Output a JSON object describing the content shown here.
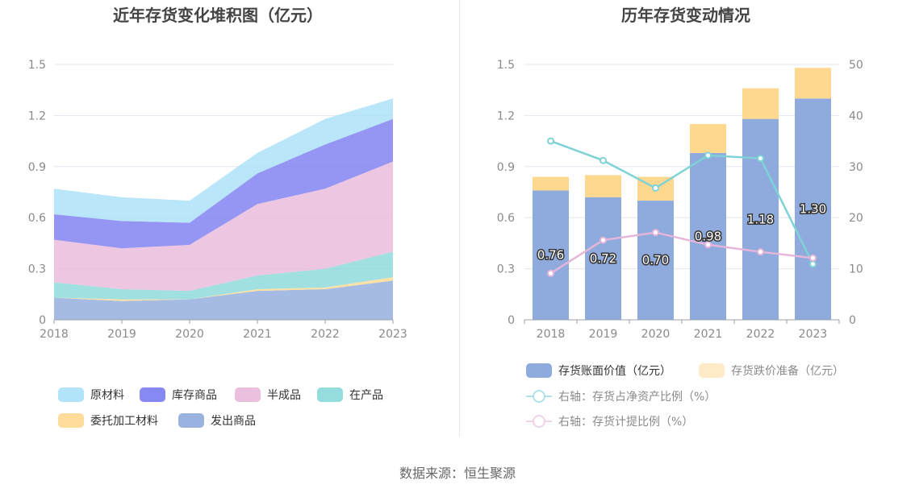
{
  "chart_data": [
    {
      "type": "area",
      "stacked": true,
      "title": "近年存货变化堆积图（亿元）",
      "categories": [
        "2018",
        "2019",
        "2020",
        "2021",
        "2022",
        "2023"
      ],
      "y_ticks": [
        "0",
        "0.3",
        "0.6",
        "0.9",
        "1.2",
        "1.5"
      ],
      "ylim": [
        0,
        1.5
      ],
      "series": [
        {
          "name": "发出商品",
          "color": "#8FAADC",
          "values": [
            0.13,
            0.11,
            0.12,
            0.17,
            0.18,
            0.23
          ]
        },
        {
          "name": "委托加工材料",
          "color": "#FFD88F",
          "values": [
            0.0,
            0.01,
            0.0,
            0.01,
            0.01,
            0.02
          ]
        },
        {
          "name": "在产品",
          "color": "#88D8DA",
          "values": [
            0.09,
            0.06,
            0.05,
            0.08,
            0.11,
            0.15
          ]
        },
        {
          "name": "半成品",
          "color": "#E9B9DA",
          "values": [
            0.25,
            0.24,
            0.27,
            0.42,
            0.47,
            0.53
          ]
        },
        {
          "name": "库存商品",
          "color": "#7B7BF1",
          "values": [
            0.15,
            0.16,
            0.13,
            0.18,
            0.26,
            0.25
          ]
        },
        {
          "name": "原材料",
          "color": "#A8E0F8",
          "values": [
            0.15,
            0.14,
            0.13,
            0.12,
            0.15,
            0.12
          ]
        }
      ],
      "legend": [
        "原材料",
        "库存商品",
        "半成品",
        "在产品",
        "委托加工材料",
        "发出商品"
      ]
    },
    {
      "type": "bar",
      "stacked": true,
      "title": "历年存货变动情况",
      "categories": [
        "2018",
        "2019",
        "2020",
        "2021",
        "2022",
        "2023"
      ],
      "y_ticks": [
        "0",
        "0.3",
        "0.6",
        "0.9",
        "1.2",
        "1.5"
      ],
      "y2_ticks": [
        "0",
        "10",
        "20",
        "30",
        "40",
        "50"
      ],
      "ylim": [
        0,
        1.5
      ],
      "y2lim": [
        0,
        50
      ],
      "series": [
        {
          "name": "存货账面价值（亿元）",
          "color": "#8FAADC",
          "values": [
            0.76,
            0.72,
            0.7,
            0.98,
            1.18,
            1.3
          ],
          "labels": [
            "0.76",
            "0.72",
            "0.70",
            "0.98",
            "1.18",
            "1.30"
          ]
        },
        {
          "name": "存货跌价准备（亿元）",
          "color": "#FFD88F",
          "values": [
            0.08,
            0.13,
            0.14,
            0.17,
            0.18,
            0.18
          ]
        }
      ],
      "line_series": [
        {
          "name": "右轴：存货占净资产比例（%）",
          "color": "#7FD2D6",
          "values": [
            35,
            31.2,
            25.8,
            32.2,
            31.6,
            10.9
          ]
        },
        {
          "name": "右轴：存货计提比例（%）",
          "color": "#E5B6D9",
          "values": [
            9.1,
            15.6,
            17.1,
            14.7,
            13.3,
            12.1
          ]
        }
      ]
    }
  ],
  "footer": {
    "source": "数据来源：恒生聚源"
  }
}
